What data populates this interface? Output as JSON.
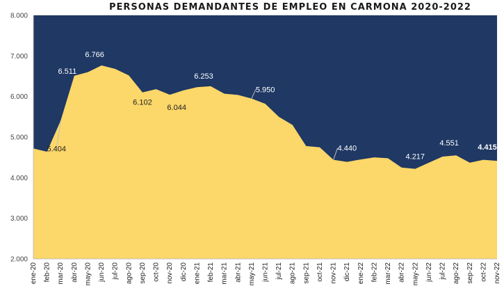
{
  "chart_data": {
    "type": "area",
    "title": "PERSONAS DEMANDANTES DE EMPLEO EN CARMONA 2020-2022",
    "xlabel": "",
    "ylabel": "",
    "ylim": [
      2000,
      8000
    ],
    "yticks": [
      2000,
      3000,
      4000,
      5000,
      6000,
      7000,
      8000
    ],
    "ytick_labels": [
      "2.000",
      "3.000",
      "4.000",
      "5.000",
      "6.000",
      "7.000",
      "8.000"
    ],
    "grid": false,
    "legend": "none",
    "colors": {
      "area": "#fcd769",
      "background": "#1f3864",
      "label_dark": "#222222",
      "label_light": "#ffffff"
    },
    "categories": [
      "ene-20",
      "feb-20",
      "mar-20",
      "abr-20",
      "may-20",
      "jun-20",
      "jul-20",
      "ago-20",
      "sep-20",
      "oct-20",
      "nov-20",
      "dic-20",
      "ene-21",
      "feb-21",
      "mar-21",
      "abr-21",
      "may-21",
      "jun-21",
      "jul-21",
      "ago-21",
      "sep-21",
      "oct-21",
      "nov-21",
      "dic-21",
      "ene-22",
      "feb-22",
      "mar-22",
      "abr-22",
      "may-22",
      "jun-22",
      "jul-22",
      "ago-22",
      "sep-22",
      "oct-22",
      "nov-22"
    ],
    "values": [
      4720,
      4640,
      5404,
      6511,
      6600,
      6766,
      6680,
      6520,
      6102,
      6180,
      6044,
      6150,
      6230,
      6253,
      6070,
      6040,
      5950,
      5820,
      5500,
      5300,
      4780,
      4750,
      4440,
      4390,
      4450,
      4500,
      4480,
      4250,
      4217,
      4370,
      4520,
      4551,
      4370,
      4440,
      4415
    ],
    "data_labels": [
      {
        "index": 2,
        "text": "5.404",
        "color": "dark"
      },
      {
        "index": 3,
        "text": "6.511",
        "color": "light"
      },
      {
        "index": 5,
        "text": "6.766",
        "color": "light"
      },
      {
        "index": 8,
        "text": "6.102",
        "color": "dark"
      },
      {
        "index": 10,
        "text": "6.044",
        "color": "dark"
      },
      {
        "index": 13,
        "text": "6.253",
        "color": "light"
      },
      {
        "index": 16,
        "text": "5.950",
        "color": "light"
      },
      {
        "index": 22,
        "text": "4.440",
        "color": "light"
      },
      {
        "index": 28,
        "text": "4.217",
        "color": "light"
      },
      {
        "index": 31,
        "text": "4.551",
        "color": "light"
      },
      {
        "index": 34,
        "text": "4.415",
        "color": "light"
      }
    ]
  }
}
